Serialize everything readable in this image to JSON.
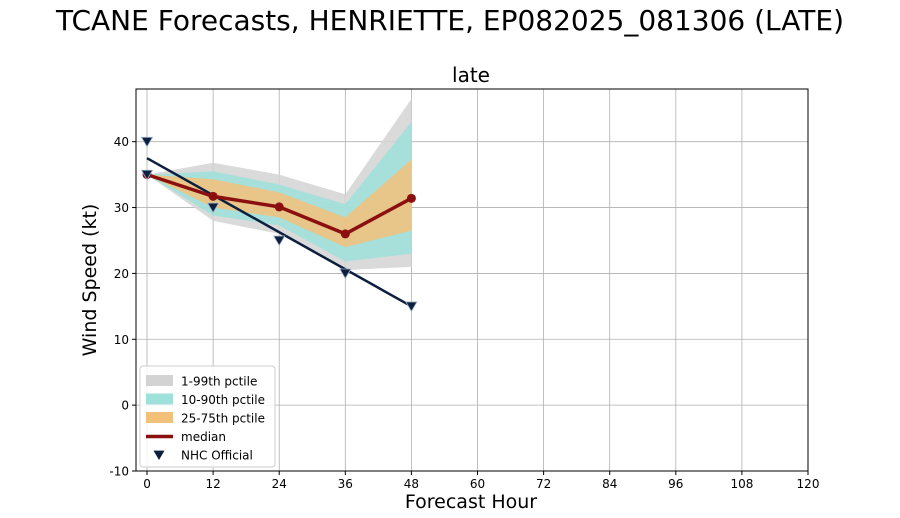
{
  "figure_title": "TCANE Forecasts, HENRIETTE, EP082025_081306 (LATE)",
  "chart_data": {
    "type": "line",
    "title": "late",
    "xlabel": "Forecast Hour",
    "ylabel": "Wind Speed (kt)",
    "xlim": [
      -2,
      120
    ],
    "ylim": [
      -10,
      48
    ],
    "xticks": [
      0,
      12,
      24,
      36,
      48,
      60,
      72,
      84,
      96,
      108,
      120
    ],
    "yticks": [
      -10,
      0,
      10,
      20,
      30,
      40
    ],
    "grid": true,
    "legend_position": "lower-left",
    "x": [
      0,
      12,
      24,
      36,
      48
    ],
    "bands": [
      {
        "name": "1-99th pctile",
        "color": "#d3d3d3",
        "lower": [
          35,
          28,
          26,
          20.5,
          21
        ],
        "upper": [
          35,
          36.8,
          35,
          32,
          46.5
        ]
      },
      {
        "name": "10-90th pctile",
        "color": "#9ee0da",
        "lower": [
          35,
          28.8,
          27.3,
          21.8,
          23
        ],
        "upper": [
          35,
          35.5,
          33.5,
          30.5,
          43
        ]
      },
      {
        "name": "25-75th pctile",
        "color": "#f3c07a",
        "lower": [
          35,
          30,
          28.5,
          24,
          26.5
        ],
        "upper": [
          35,
          34.3,
          32.3,
          28.5,
          37.3
        ]
      }
    ],
    "series": [
      {
        "name": "median",
        "color": "#8b0f0f",
        "x": [
          0,
          12,
          24,
          36,
          48
        ],
        "values": [
          35,
          31.7,
          30.1,
          26,
          31.4
        ]
      },
      {
        "name": "NHC Official",
        "color": "#0d1f3f",
        "marker": "triangle-down",
        "x": [
          0,
          0,
          12,
          24,
          36,
          48
        ],
        "values": [
          40,
          35,
          30,
          25,
          20,
          15
        ]
      }
    ],
    "official_trend_line": {
      "x": [
        0,
        48
      ],
      "values": [
        37.5,
        15
      ]
    }
  }
}
